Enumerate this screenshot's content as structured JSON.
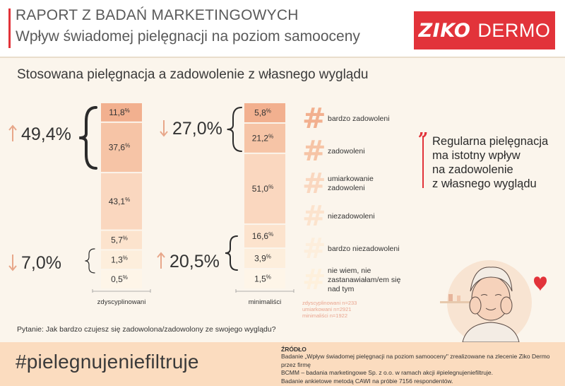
{
  "header": {
    "title": "RAPORT Z BADAŃ MARKETINGOWYCH",
    "subtitle": "Wpływ świadomej pielęgnacji na poziom samooceny",
    "logo_primary": "ZIKO",
    "logo_secondary": "DERMO",
    "brand_color": "#e2333a"
  },
  "section_title": "Stosowana pielęgnacja a zadowolenie z własnego wyglądu",
  "chart_data": {
    "type": "bar",
    "stacked": true,
    "categories": [
      "zdyscyplinowani",
      "minimaliści"
    ],
    "series": [
      {
        "name": "bardzo zadowoleni",
        "values": [
          11.8,
          5.8
        ],
        "labels": [
          "11,8",
          "5,8"
        ],
        "color": "#f2b08f"
      },
      {
        "name": "zadowoleni",
        "values": [
          37.6,
          21.2
        ],
        "labels": [
          "37,6",
          "21,2"
        ],
        "color": "#f6c4a6"
      },
      {
        "name": "umiarkowanie zadowoleni",
        "values": [
          43.1,
          51.0
        ],
        "labels": [
          "43,1",
          "51,0"
        ],
        "color": "#fad7bf"
      },
      {
        "name": "niezadowoleni",
        "values": [
          5.7,
          16.6
        ],
        "labels": [
          "5,7",
          "16,6"
        ],
        "color": "#fce3cd"
      },
      {
        "name": "bardzo niezadowoleni",
        "values": [
          1.3,
          3.9
        ],
        "labels": [
          "1,3",
          "3,9"
        ],
        "color": "#fdeedc"
      },
      {
        "name": "nie wiem, nie zastanawiałam/em się nad tym",
        "values": [
          0.5,
          1.5
        ],
        "labels": [
          "0,5",
          "1,5"
        ],
        "color": "#fef5e8"
      }
    ],
    "percent_suffix": "%",
    "summaries": [
      {
        "category": "zdyscyplinowani",
        "group": "top",
        "direction": "up",
        "value": "49,4%"
      },
      {
        "category": "zdyscyplinowani",
        "group": "bottom",
        "direction": "down",
        "value": "7,0%"
      },
      {
        "category": "minimaliści",
        "group": "top",
        "direction": "down",
        "value": "27,0%"
      },
      {
        "category": "minimaliści",
        "group": "bottom",
        "direction": "up",
        "value": "20,5%"
      }
    ]
  },
  "legend": [
    {
      "label_lines": [
        "bardzo zadowoleni"
      ],
      "color": "#f2b08f"
    },
    {
      "label_lines": [
        "zadowoleni"
      ],
      "color": "#f6c4a6"
    },
    {
      "label_lines": [
        "umiarkowanie",
        "zadowoleni"
      ],
      "color": "#fad7bf"
    },
    {
      "label_lines": [
        "niezadowoleni"
      ],
      "color": "#fce3cd"
    },
    {
      "label_lines": [
        "bardzo niezadowoleni"
      ],
      "color": "#fdeedc"
    },
    {
      "label_lines": [
        "nie wiem, nie",
        "zastanawiałam/em się",
        "nad tym"
      ],
      "color": "#fef0dc"
    }
  ],
  "samples": [
    "zdyscyplinowani n=233",
    "umiarkowani n=2921",
    "minimaliści n=1922"
  ],
  "quote": {
    "mark": "„",
    "lines": [
      "Regularna pielęgnacja",
      "ma istotny wpływ",
      "na zadowolenie",
      "z własnego wyglądu"
    ]
  },
  "question": "Pytanie: Jak bardzo czujesz się zadowolona/zadowolony ze swojego wyglądu?",
  "footer": {
    "hashtag": "#pielegnujeniefiltruje",
    "source_label": "ŹRÓDŁO",
    "source_lines": [
      "Badanie „Wpływ świadomej pielęgnacji na poziom samooceny\" zrealizowane na zlecenie Ziko Dermo przez firmę",
      "BCMM – badania marketingowe Sp. z o.o. w ramach akcji #pielegnujeniefiltruje.",
      "Badanie ankietowe metodą CAWI na próbie 7156 respondentów."
    ]
  },
  "colors": {
    "background": "#fbf5ec",
    "footer_bg": "#fbdcbf",
    "accent": "#e2333a",
    "arrow": "#e8a78a"
  }
}
